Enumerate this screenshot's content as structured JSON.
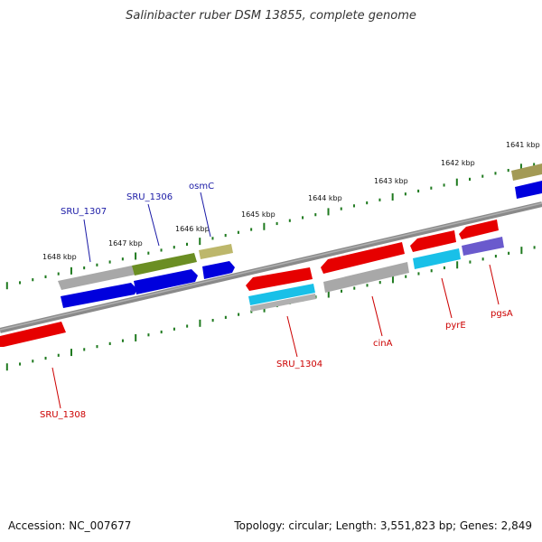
{
  "title": "Salinibacter ruber DSM 13855, complete genome",
  "footer": {
    "accession": "Accession: NC_007677",
    "topology": "Topology: circular; Length: 3,551,823 bp; Genes: 2,849"
  },
  "ruler_labels": [
    "1648 kbp",
    "1647 kbp",
    "1646 kbp",
    "1645 kbp",
    "1644 kbp",
    "1643 kbp",
    "1642 kbp",
    "1641 kbp"
  ],
  "gene_labels": {
    "forward": [
      "SRU_1307",
      "SRU_1306",
      "osmC"
    ],
    "reverse": [
      "SRU_1308",
      "SRU_1304",
      "cinA",
      "pyrE",
      "pgsA"
    ]
  },
  "colors": {
    "forward_label": "#1a1aa6",
    "reverse_label": "#cc0000",
    "ruler": "#1f7a1f",
    "backbone": "#808080",
    "gene_red": "#e60000",
    "gene_blue": "#0000dd",
    "gene_gray": "#a8a8a8",
    "gene_olive": "#6b8e23",
    "gene_khaki": "#bdb76b",
    "gene_cyan": "#19c0e8",
    "gene_purple": "#6a5acd"
  }
}
